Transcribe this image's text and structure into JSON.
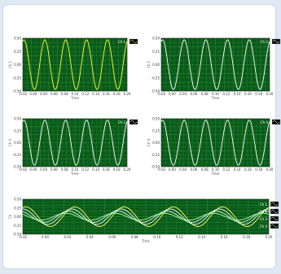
{
  "chart_data": [
    {
      "type": "line",
      "xlabel": "Time",
      "ylabel": "Ch 1",
      "xticks": [
        "-0.02",
        "0.00",
        "0.04",
        "0.06",
        "0.08",
        "0.10",
        "0.12",
        "0.14",
        "0.16",
        "0.18",
        "0.20"
      ],
      "yticks": [
        "-0.50",
        "-0.25",
        "0.00",
        "0.25",
        "0.50"
      ],
      "ylim": [
        -0.5,
        0.5
      ],
      "xlim": [
        -0.02,
        0.2
      ],
      "grid": true,
      "legend": "top-right",
      "series": [
        {
          "name": "Ch 1",
          "color": "#ffff33",
          "amplitude": 0.47,
          "cycles": 5
        }
      ]
    },
    {
      "type": "line",
      "xlabel": "Time",
      "ylabel": "Ch 2",
      "xticks": [
        "-0.02",
        "0.00",
        "0.04",
        "0.06",
        "0.08",
        "0.10",
        "0.12",
        "0.14",
        "0.16",
        "0.18",
        "0.20"
      ],
      "yticks": [
        "-0.50",
        "-0.25",
        "0.00",
        "0.25",
        "0.50"
      ],
      "ylim": [
        -0.5,
        0.5
      ],
      "xlim": [
        -0.02,
        0.2
      ],
      "grid": true,
      "legend": "top-right",
      "series": [
        {
          "name": "Ch 2",
          "color": "#ffffff",
          "amplitude": 0.47,
          "cycles": 5
        }
      ]
    },
    {
      "type": "line",
      "xlabel": "Time",
      "ylabel": "Ch 3",
      "xticks": [
        "-0.02",
        "0.00",
        "0.04",
        "0.06",
        "0.08",
        "0.10",
        "0.12",
        "0.14",
        "0.16",
        "0.18",
        "0.20"
      ],
      "yticks": [
        "-0.50",
        "-0.25",
        "0.00",
        "0.25",
        "0.50"
      ],
      "ylim": [
        -0.5,
        0.5
      ],
      "xlim": [
        -0.02,
        0.2
      ],
      "grid": true,
      "legend": "top-right",
      "series": [
        {
          "name": "Ch 3",
          "color": "#ffffff",
          "amplitude": 0.47,
          "cycles": 5
        }
      ]
    },
    {
      "type": "line",
      "xlabel": "Time",
      "ylabel": "Ch 4",
      "xticks": [
        "-0.02",
        "0.00",
        "0.04",
        "0.06",
        "0.08",
        "0.10",
        "0.12",
        "0.14",
        "0.16",
        "0.18",
        "0.20"
      ],
      "yticks": [
        "-0.50",
        "-0.25",
        "0.00",
        "0.25",
        "0.50"
      ],
      "ylim": [
        -0.5,
        0.5
      ],
      "xlim": [
        -0.02,
        0.2
      ],
      "grid": true,
      "legend": "top-right",
      "series": [
        {
          "name": "Ch 4",
          "color": "#ffffff",
          "amplitude": 0.47,
          "cycles": 5
        }
      ]
    },
    {
      "type": "line",
      "xlabel": "Time",
      "ylabel": "Ch",
      "xticks": [
        "-0.02",
        "0.00",
        "0.02",
        "0.04",
        "0.06",
        "0.08",
        "0.10",
        "0.12",
        "0.14",
        "0.16",
        "0.18",
        "0.20"
      ],
      "yticks": [
        "-0.50",
        "-0.25",
        "0.00",
        "0.25",
        "0.50"
      ],
      "ylim": [
        -0.5,
        0.5
      ],
      "xlim": [
        -0.02,
        0.2
      ],
      "grid": true,
      "legend": "right",
      "series": [
        {
          "name": "Ch 1",
          "color": "#ffff66",
          "amplitude": 0.28,
          "cycles": 5,
          "phase": 0.0
        },
        {
          "name": "Ch 2",
          "color": "#ffffff",
          "amplitude": 0.22,
          "cycles": 5,
          "phase": 0.4
        },
        {
          "name": "Ch 3",
          "color": "#e0ffe0",
          "amplitude": 0.16,
          "cycles": 5,
          "phase": 0.8
        },
        {
          "name": "Ch 4",
          "color": "#aaffaa",
          "amplitude": 0.1,
          "cycles": 5,
          "phase": 1.2
        }
      ]
    }
  ]
}
